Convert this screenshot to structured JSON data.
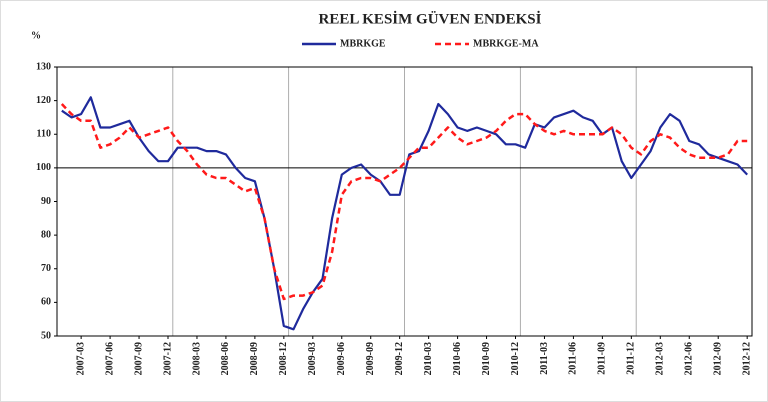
{
  "chart_data": {
    "type": "line",
    "title": "REEL KESİM GÜVEN ENDEKSİ",
    "y_label": "%",
    "categories": [
      null,
      null,
      "2007-03",
      null,
      null,
      "2007-06",
      null,
      null,
      "2007-09",
      null,
      null,
      "2007-12",
      null,
      null,
      "2008-03",
      null,
      null,
      "2008-06",
      null,
      null,
      "2008-09",
      null,
      null,
      "2008-12",
      null,
      null,
      "2009-03",
      null,
      null,
      "2009-06",
      null,
      null,
      "2009-09",
      null,
      null,
      "2009-12",
      null,
      null,
      "2010-03",
      null,
      null,
      "2010-06",
      null,
      null,
      "2010-09",
      null,
      null,
      "2010-12",
      null,
      null,
      "2011-03",
      null,
      null,
      "2011-06",
      null,
      null,
      "2011-09",
      null,
      null,
      "2011-12",
      null,
      null,
      "2012-03",
      null,
      null,
      "2012-06",
      null,
      null,
      "2012-09",
      null,
      null,
      "2012-12"
    ],
    "series": [
      {
        "name": "MBRKGE",
        "color": "#1f2a9c",
        "dash": false,
        "values": [
          117,
          115,
          116,
          121,
          112,
          112,
          113,
          114,
          109,
          105,
          102,
          102,
          106,
          106,
          106,
          105,
          105,
          104,
          100,
          97,
          96,
          85,
          70,
          53,
          52,
          58,
          63,
          67,
          85,
          98,
          100,
          101,
          98,
          96,
          92,
          92,
          104,
          105,
          111,
          119,
          116,
          112,
          111,
          112,
          111,
          110,
          107,
          107,
          106,
          113,
          112,
          115,
          116,
          117,
          115,
          114,
          110,
          112,
          102,
          97,
          101,
          105,
          112,
          116,
          114,
          108,
          107,
          104,
          103,
          102,
          101,
          98
        ]
      },
      {
        "name": "MBRKGE-MA",
        "color": "#ff1a1a",
        "dash": true,
        "values": [
          119,
          116,
          114,
          114,
          106,
          107,
          109,
          112,
          109,
          110,
          111,
          112,
          108,
          105,
          101,
          98,
          97,
          97,
          95,
          93,
          94,
          85,
          70,
          61,
          62,
          62,
          63,
          65,
          75,
          92,
          96,
          97,
          97,
          96,
          98,
          100,
          103,
          106,
          106,
          109,
          112,
          109,
          107,
          108,
          109,
          111,
          114,
          116,
          116,
          113,
          111,
          110,
          111,
          110,
          110,
          110,
          110,
          112,
          110,
          106,
          104,
          108,
          110,
          109,
          106,
          104,
          103,
          103,
          103,
          104,
          108,
          108
        ]
      }
    ],
    "ylim": [
      50,
      130
    ],
    "yticks": [
      50,
      60,
      70,
      80,
      90,
      100,
      110,
      120,
      130
    ],
    "reference_line": 100
  }
}
